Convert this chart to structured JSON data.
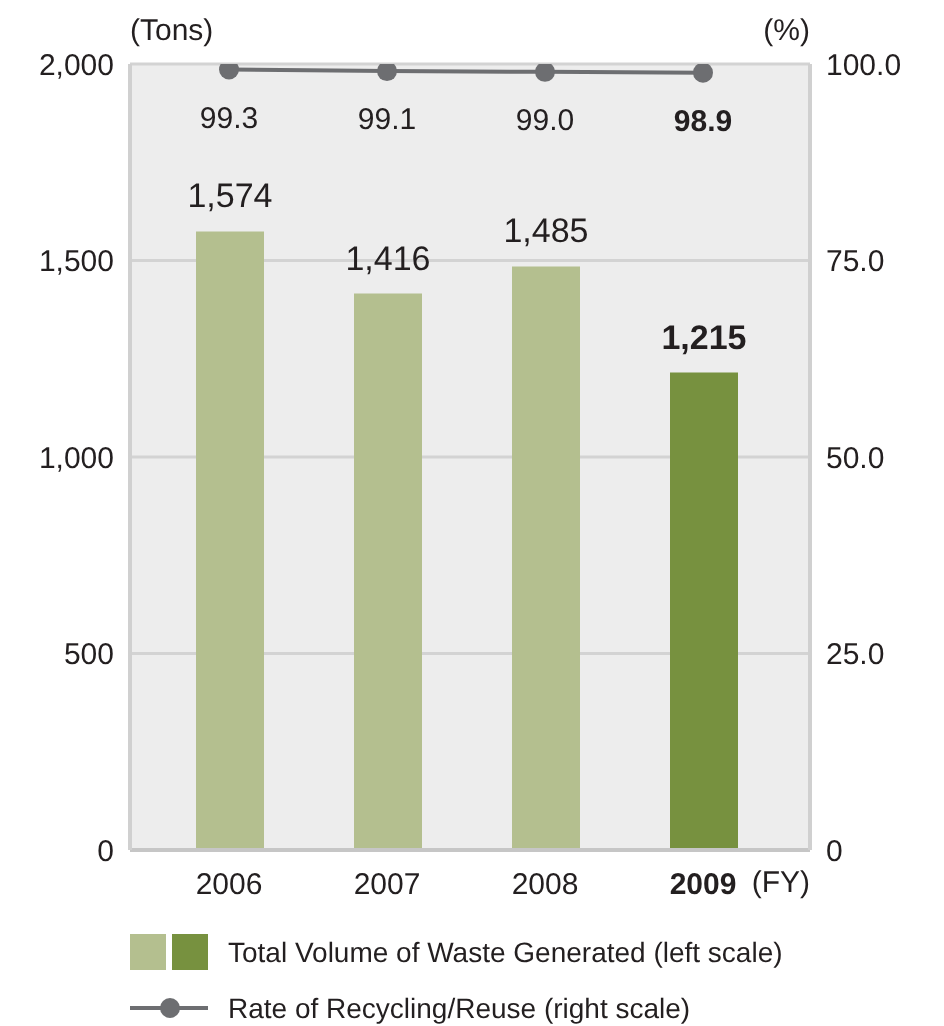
{
  "chart_data": {
    "type": "bar",
    "categories": [
      "2006",
      "2007",
      "2008",
      "2009"
    ],
    "xlabel": "(FY)",
    "ylabel": "(Tons)",
    "y2label": "(%)",
    "series": [
      {
        "name": "Total Volume of Waste Generated (left scale)",
        "colors": [
          "#b4bf8f",
          "#b4bf8f",
          "#b4bf8f",
          "#77913f"
        ],
        "values": [
          1574,
          1416,
          1485,
          1215
        ],
        "value_labels": [
          "1,574",
          "1,416",
          "1,485",
          "1,215"
        ]
      },
      {
        "name": "Rate of Recycling/Reuse (right scale)",
        "type": "line",
        "axis": "y2",
        "color": "#6d6e71",
        "values": [
          99.3,
          99.1,
          99.0,
          98.9
        ],
        "value_labels": [
          "99.3",
          "99.1",
          "99.0",
          "98.9"
        ]
      }
    ],
    "ylim": [
      0,
      2000
    ],
    "yticks": [
      0,
      500,
      {
        "value": 1000,
        "label": "1,000"
      },
      {
        "value": 1500,
        "label": "1,500"
      },
      {
        "value": 2000,
        "label": "2,000"
      }
    ],
    "y2lim": [
      0,
      100
    ],
    "y2ticks": [
      0,
      {
        "value": 25,
        "label": "25.0"
      },
      {
        "value": 50,
        "label": "50.0"
      },
      {
        "value": 75,
        "label": "75.0"
      },
      {
        "value": 100,
        "label": "100.0"
      }
    ],
    "grid": "y",
    "legend": "bottom",
    "marker": "circle"
  }
}
